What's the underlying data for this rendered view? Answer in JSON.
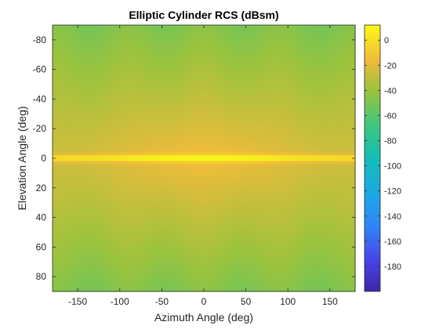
{
  "chart_data": {
    "type": "heatmap",
    "title": "Elliptic Cylinder RCS (dBsm)",
    "xlabel": "Azimuth Angle (deg)",
    "ylabel": "Elevation Angle (deg)",
    "xlim": [
      -180,
      180
    ],
    "ylim": [
      -90,
      90
    ],
    "y_direction": "reverse",
    "x_ticks": [
      -150,
      -100,
      -50,
      0,
      50,
      100,
      150
    ],
    "y_ticks": [
      -80,
      -60,
      -40,
      -20,
      0,
      20,
      40,
      60,
      80
    ],
    "colorbar": {
      "colormap": "parula",
      "range": [
        -200,
        12
      ],
      "ticks": [
        0,
        -20,
        -40,
        -60,
        -80,
        -100,
        -120,
        -140,
        -160,
        -180
      ]
    },
    "grid": false,
    "values_description_points": [
      {
        "azimuth": -180,
        "elevation": 0,
        "rcs_dbsm": 5
      },
      {
        "azimuth": 0,
        "elevation": 0,
        "rcs_dbsm": 8
      },
      {
        "azimuth": 0,
        "elevation": -45,
        "rcs_dbsm": -22
      },
      {
        "azimuth": 90,
        "elevation": -45,
        "rcs_dbsm": -30
      },
      {
        "azimuth": 0,
        "elevation": -90,
        "rcs_dbsm": -45
      },
      {
        "azimuth": 90,
        "elevation": 90,
        "rcs_dbsm": -50
      }
    ]
  }
}
